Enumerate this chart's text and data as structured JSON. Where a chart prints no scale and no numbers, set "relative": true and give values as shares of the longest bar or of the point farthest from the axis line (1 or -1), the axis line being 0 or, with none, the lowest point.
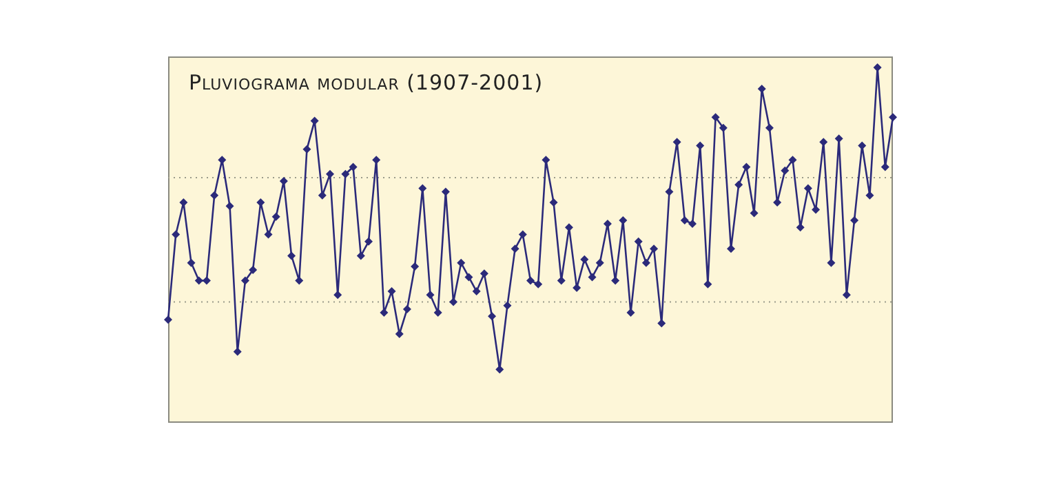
{
  "chart_data": {
    "type": "line",
    "title": "Pluviograma modular (1907-2001)",
    "relative": true,
    "categories": [
      null,
      null,
      null,
      null,
      null,
      null,
      null,
      null,
      null,
      null,
      null,
      null,
      null,
      null,
      null,
      null,
      null,
      null,
      null,
      null,
      null,
      null,
      null,
      null,
      null,
      null,
      null,
      null,
      null,
      null,
      null,
      null,
      null,
      null,
      null,
      null,
      null,
      null,
      null,
      null,
      null,
      null,
      null,
      null,
      null,
      null,
      null,
      null,
      null,
      null,
      null,
      null,
      null,
      null,
      null,
      null,
      null,
      null,
      null,
      null,
      null,
      null,
      null,
      null,
      null,
      null,
      null,
      null,
      null,
      null,
      null,
      null,
      null,
      null,
      null,
      null,
      null,
      null,
      null,
      null,
      null,
      null,
      null,
      null,
      null,
      null,
      null,
      null,
      null,
      null,
      null,
      null,
      null,
      null,
      null
    ],
    "series": [
      {
        "color": "#2b2a7a",
        "values": [
          0.29,
          0.53,
          0.62,
          0.45,
          0.4,
          0.4,
          0.64,
          0.74,
          0.61,
          0.2,
          0.4,
          0.43,
          0.62,
          0.53,
          0.58,
          0.68,
          0.47,
          0.4,
          0.77,
          0.85,
          0.64,
          0.7,
          0.36,
          0.7,
          0.72,
          0.47,
          0.51,
          0.74,
          0.31,
          0.37,
          0.25,
          0.32,
          0.44,
          0.66,
          0.36,
          0.31,
          0.65,
          0.34,
          0.45,
          0.41,
          0.37,
          0.42,
          0.3,
          0.15,
          0.33,
          0.49,
          0.53,
          0.4,
          0.39,
          0.74,
          0.62,
          0.4,
          0.55,
          0.38,
          0.46,
          0.41,
          0.45,
          0.56,
          0.4,
          0.57,
          0.31,
          0.51,
          0.45,
          0.49,
          0.28,
          0.65,
          0.79,
          0.57,
          0.56,
          0.78,
          0.39,
          0.86,
          0.83,
          0.49,
          0.67,
          0.72,
          0.59,
          0.94,
          0.83,
          0.62,
          0.71,
          0.74,
          0.55,
          0.66,
          0.6,
          0.79,
          0.45,
          0.8,
          0.36,
          0.57,
          0.78,
          0.64,
          1,
          0.72,
          0.86
        ]
      }
    ],
    "ref_lines": [
      {
        "axis": "y",
        "value": 0.69,
        "color": "#9a9a8a",
        "line_style": "dotted"
      },
      {
        "axis": "y",
        "value": 0.34,
        "color": "#9a9a8a",
        "line_style": "dotted"
      }
    ],
    "marker": "diamond",
    "line_style": "solid"
  }
}
